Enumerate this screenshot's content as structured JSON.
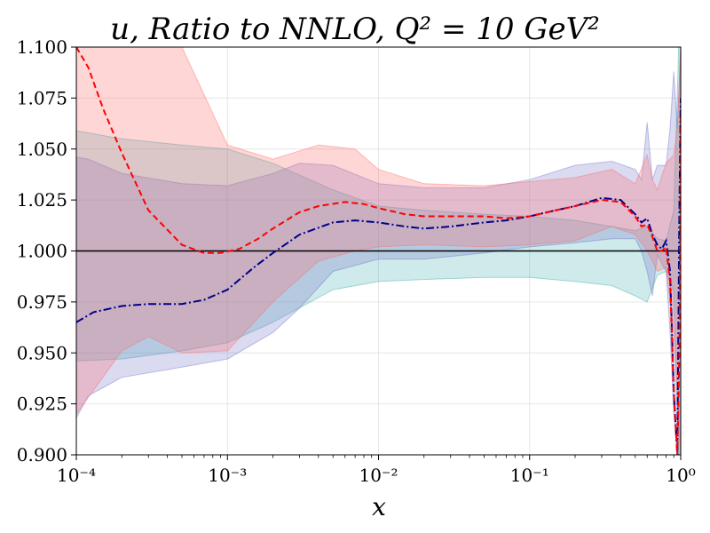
{
  "chart_data": {
    "type": "line",
    "title_prefix": "u, Ratio to NNLO, ",
    "title_q2": "Q² = 10 GeV²",
    "xlabel": "x",
    "xscale": "log",
    "xlim": [
      0.0001,
      1
    ],
    "ylim": [
      0.9,
      1.1
    ],
    "grid": true,
    "x_ticks": [
      {
        "value": 0.0001,
        "label": "10⁻⁴"
      },
      {
        "value": 0.001,
        "label": "10⁻³"
      },
      {
        "value": 0.01,
        "label": "10⁻²"
      },
      {
        "value": 0.1,
        "label": "10⁻¹"
      },
      {
        "value": 1,
        "label": "10⁰"
      }
    ],
    "y_ticks": [
      {
        "value": 0.9,
        "label": "0.900"
      },
      {
        "value": 0.925,
        "label": "0.925"
      },
      {
        "value": 0.95,
        "label": "0.950"
      },
      {
        "value": 0.975,
        "label": "0.975"
      },
      {
        "value": 1.0,
        "label": "1.000"
      },
      {
        "value": 1.025,
        "label": "1.025"
      },
      {
        "value": 1.05,
        "label": "1.050"
      },
      {
        "value": 1.075,
        "label": "1.075"
      },
      {
        "value": 1.1,
        "label": "1.100"
      }
    ],
    "reference_line": 1.0,
    "bands": [
      {
        "name": "teal-band",
        "color": "#20a0a0",
        "opacity": 0.22,
        "x": [
          0.0001,
          0.0002,
          0.0005,
          0.001,
          0.002,
          0.005,
          0.01,
          0.02,
          0.05,
          0.1,
          0.2,
          0.35,
          0.5,
          0.6,
          0.7,
          0.8,
          0.9,
          0.97,
          1.0
        ],
        "upper": [
          1.059,
          1.055,
          1.052,
          1.05,
          1.043,
          1.03,
          1.022,
          1.02,
          1.018,
          1.017,
          1.015,
          1.012,
          1.01,
          1.012,
          1.006,
          1.005,
          1.02,
          1.1,
          1.1
        ],
        "lower": [
          0.946,
          0.947,
          0.951,
          0.955,
          0.965,
          0.981,
          0.985,
          0.986,
          0.987,
          0.987,
          0.985,
          0.983,
          0.978,
          0.975,
          0.988,
          0.99,
          0.98,
          0.9,
          0.9
        ]
      },
      {
        "name": "blue-band",
        "color": "#6a6ac8",
        "opacity": 0.25,
        "x": [
          0.0001,
          0.00012,
          0.0002,
          0.0005,
          0.001,
          0.002,
          0.003,
          0.005,
          0.01,
          0.02,
          0.05,
          0.1,
          0.2,
          0.35,
          0.5,
          0.55,
          0.6,
          0.65,
          0.7,
          0.8,
          0.85,
          0.9,
          0.95,
          1.0
        ],
        "upper": [
          1.046,
          1.045,
          1.038,
          1.033,
          1.032,
          1.038,
          1.043,
          1.042,
          1.033,
          1.031,
          1.031,
          1.035,
          1.042,
          1.044,
          1.04,
          1.035,
          1.063,
          1.035,
          1.042,
          1.042,
          1.06,
          1.088,
          1.06,
          1.1
        ],
        "lower": [
          0.918,
          0.929,
          0.938,
          0.943,
          0.947,
          0.96,
          0.972,
          0.99,
          0.996,
          0.996,
          0.999,
          1.002,
          1.004,
          1.006,
          1.006,
          1.0,
          0.99,
          0.978,
          0.998,
          0.99,
          0.96,
          0.92,
          0.9,
          0.9
        ]
      },
      {
        "name": "red-band",
        "color": "#ff6b6b",
        "opacity": 0.28,
        "x": [
          0.0001,
          0.0002,
          0.0003,
          0.0005,
          0.001,
          0.002,
          0.004,
          0.007,
          0.01,
          0.02,
          0.05,
          0.1,
          0.2,
          0.35,
          0.5,
          0.6,
          0.65,
          0.7,
          0.8,
          0.9,
          0.95,
          1.0
        ],
        "upper": [
          1.1,
          1.1,
          1.1,
          1.1,
          1.052,
          1.045,
          1.052,
          1.05,
          1.04,
          1.033,
          1.032,
          1.034,
          1.036,
          1.04,
          1.033,
          1.047,
          1.035,
          1.03,
          1.043,
          1.047,
          1.06,
          1.1
        ],
        "lower": [
          0.92,
          0.951,
          0.958,
          0.95,
          0.951,
          0.975,
          0.995,
          1.0,
          1.002,
          1.003,
          1.002,
          1.003,
          1.005,
          1.012,
          1.008,
          1.0,
          0.995,
          0.99,
          0.992,
          0.96,
          0.93,
          0.9
        ]
      }
    ],
    "series": [
      {
        "name": "dashdot-blue",
        "color": "#00008b",
        "dash": "dashdot",
        "x": [
          0.0001,
          0.00013,
          0.0002,
          0.0003,
          0.0005,
          0.0007,
          0.001,
          0.0015,
          0.002,
          0.003,
          0.005,
          0.007,
          0.01,
          0.015,
          0.02,
          0.03,
          0.05,
          0.07,
          0.1,
          0.15,
          0.2,
          0.3,
          0.4,
          0.5,
          0.55,
          0.6,
          0.65,
          0.7,
          0.75,
          0.8,
          0.85,
          0.9,
          0.95,
          0.98,
          1.0
        ],
        "values": [
          0.965,
          0.97,
          0.973,
          0.974,
          0.974,
          0.976,
          0.981,
          0.992,
          0.999,
          1.008,
          1.014,
          1.015,
          1.014,
          1.012,
          1.011,
          1.012,
          1.014,
          1.015,
          1.017,
          1.02,
          1.022,
          1.026,
          1.025,
          1.018,
          1.014,
          1.016,
          1.008,
          1.003,
          1.001,
          1.005,
          0.99,
          0.93,
          0.9,
          1.02,
          1.075
        ]
      },
      {
        "name": "dashed-red",
        "color": "#ff0000",
        "dash": "dashed",
        "x": [
          0.0001,
          0.00012,
          0.00015,
          0.0002,
          0.0003,
          0.0005,
          0.0007,
          0.0009,
          0.0012,
          0.0016,
          0.002,
          0.003,
          0.004,
          0.006,
          0.008,
          0.01,
          0.015,
          0.02,
          0.03,
          0.05,
          0.07,
          0.1,
          0.15,
          0.2,
          0.3,
          0.4,
          0.5,
          0.55,
          0.6,
          0.65,
          0.7,
          0.75,
          0.8,
          0.85,
          0.9,
          0.95,
          0.98,
          1.0
        ],
        "values": [
          1.1,
          1.09,
          1.07,
          1.048,
          1.02,
          1.003,
          0.999,
          0.999,
          1.001,
          1.006,
          1.011,
          1.019,
          1.022,
          1.024,
          1.023,
          1.021,
          1.018,
          1.017,
          1.017,
          1.017,
          1.016,
          1.017,
          1.02,
          1.022,
          1.025,
          1.024,
          1.017,
          1.012,
          1.013,
          1.007,
          1.0,
          1.0,
          1.002,
          0.985,
          0.93,
          0.9,
          0.95,
          1.065
        ]
      }
    ]
  }
}
